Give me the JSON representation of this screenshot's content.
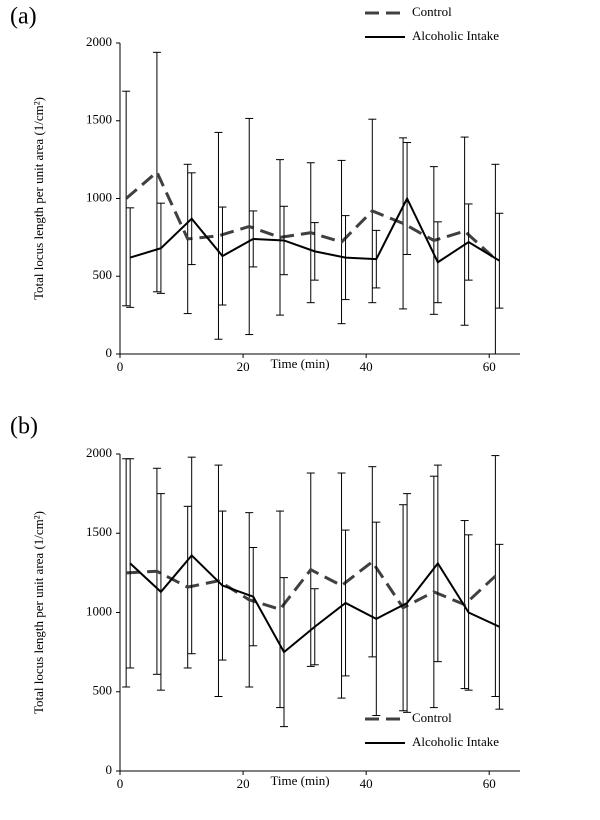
{
  "chart_data": [
    {
      "type": "line",
      "title": "(a)",
      "x_label": "Time (min)",
      "y_label": "Total locus length per unit area (1/cm²)",
      "xlim": [
        0,
        65
      ],
      "xticks": [
        0,
        20,
        40,
        60
      ],
      "ylim": [
        0,
        2000
      ],
      "yticks": [
        0,
        500,
        1000,
        1500,
        2000
      ],
      "legend": "top-right",
      "x": [
        1,
        6,
        11,
        16,
        21,
        26,
        31,
        36,
        41,
        46,
        51,
        56,
        61
      ],
      "series": [
        {
          "name": "Control",
          "color": "#404040",
          "dash": true,
          "values": [
            1000,
            1170,
            740,
            760,
            820,
            750,
            780,
            720,
            920,
            840,
            730,
            790,
            610
          ],
          "errors": [
            690,
            770,
            480,
            665,
            695,
            500,
            450,
            525,
            590,
            550,
            475,
            605,
            610
          ]
        },
        {
          "name": "Alcoholic Intake",
          "color": "#000000",
          "dash": false,
          "values": [
            620,
            680,
            870,
            630,
            740,
            730,
            660,
            620,
            610,
            1000,
            590,
            720,
            600
          ],
          "errors": [
            320,
            290,
            295,
            315,
            180,
            220,
            185,
            270,
            185,
            360,
            260,
            245,
            305
          ]
        }
      ]
    },
    {
      "type": "line",
      "title": "(b)",
      "x_label": "Time (min)",
      "y_label": "Total locus length per unit area (1/cm²)",
      "xlim": [
        0,
        65
      ],
      "xticks": [
        0,
        20,
        40,
        60
      ],
      "ylim": [
        0,
        2000
      ],
      "yticks": [
        0,
        500,
        1000,
        1500,
        2000
      ],
      "legend": "bottom-right",
      "x": [
        1,
        6,
        11,
        16,
        21,
        26,
        31,
        36,
        41,
        46,
        51,
        56,
        61
      ],
      "series": [
        {
          "name": "Control",
          "color": "#404040",
          "dash": true,
          "values": [
            1250,
            1260,
            1160,
            1200,
            1080,
            1020,
            1270,
            1170,
            1320,
            1030,
            1130,
            1050,
            1230
          ],
          "errors": [
            720,
            650,
            510,
            730,
            550,
            620,
            610,
            710,
            600,
            650,
            730,
            530,
            760
          ]
        },
        {
          "name": "Alcoholic Intake",
          "color": "#000000",
          "dash": false,
          "values": [
            1310,
            1130,
            1360,
            1170,
            1100,
            750,
            910,
            1060,
            960,
            1060,
            1310,
            1000,
            910
          ],
          "errors": [
            660,
            620,
            620,
            470,
            310,
            470,
            240,
            460,
            610,
            690,
            620,
            490,
            520
          ]
        }
      ]
    }
  ]
}
